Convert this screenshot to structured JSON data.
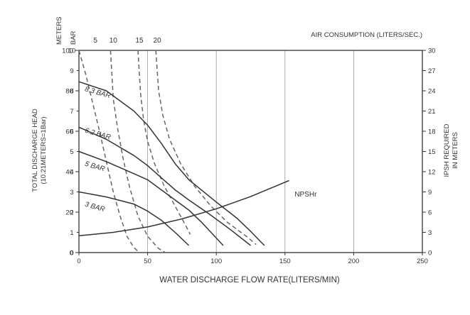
{
  "chart_data": {
    "type": "line",
    "xlabel": "WATER DISCHARGE FLOW RATE(LITERS/MIN)",
    "x_ticks": [
      0,
      50,
      100,
      150,
      200,
      250
    ],
    "xlim": [
      0,
      250
    ],
    "left_axis": {
      "label_line1": "TOTAL  DISCHARGE  HEAD",
      "label_line2": "(10.21METERS=1Bar)",
      "unit_top": "METERS",
      "unit_top2": "BAR",
      "ticks": [
        0,
        20,
        40,
        60,
        80,
        100
      ],
      "lim": [
        0,
        100
      ],
      "bar_ticks": [
        0,
        1,
        2,
        3,
        4,
        5,
        6,
        7,
        8,
        9,
        10
      ]
    },
    "right_axis": {
      "label_line1": "IPSH  REQUIRED",
      "label_line2": "IN  METERS",
      "ticks": [
        0,
        3,
        6,
        9,
        12,
        15,
        18,
        21,
        24,
        27,
        30
      ],
      "lim": [
        0,
        30
      ]
    },
    "air": {
      "title": "AIR CONSUMPTION (LITERS/SEC.)",
      "labels": [
        {
          "text": "5",
          "x": 12
        },
        {
          "text": "10",
          "x": 25
        },
        {
          "text": "15",
          "x": 44
        },
        {
          "text": "20",
          "x": 57
        }
      ]
    },
    "pressure_curves": [
      {
        "name": "8.3 BAR",
        "label_x": 4,
        "label_y": 80,
        "points": [
          [
            0,
            84.5
          ],
          [
            20,
            80
          ],
          [
            40,
            70
          ],
          [
            50,
            63
          ],
          [
            60,
            54
          ],
          [
            70,
            44
          ],
          [
            80,
            36
          ],
          [
            100,
            25
          ],
          [
            115,
            17
          ],
          [
            125,
            10.5
          ],
          [
            135,
            3.5
          ]
        ]
      },
      {
        "name": "6.2 BAR",
        "label_x": 4,
        "label_y": 59.5,
        "points": [
          [
            0,
            62
          ],
          [
            20,
            56
          ],
          [
            40,
            48
          ],
          [
            50,
            43
          ],
          [
            60,
            37
          ],
          [
            70,
            31
          ],
          [
            80,
            26
          ],
          [
            95,
            19
          ],
          [
            110,
            11.5
          ],
          [
            125,
            3.5
          ]
        ]
      },
      {
        "name": "5 BAR",
        "label_x": 4,
        "label_y": 43,
        "points": [
          [
            0,
            50
          ],
          [
            20,
            45
          ],
          [
            40,
            39
          ],
          [
            50,
            36
          ],
          [
            60,
            31
          ],
          [
            70,
            26
          ],
          [
            80,
            21
          ],
          [
            90,
            14.5
          ],
          [
            105,
            3.5
          ]
        ]
      },
      {
        "name": "3 BAR",
        "label_x": 4,
        "label_y": 23,
        "points": [
          [
            0,
            30
          ],
          [
            20,
            27.5
          ],
          [
            40,
            24
          ],
          [
            50,
            20.5
          ],
          [
            60,
            16
          ],
          [
            70,
            10
          ],
          [
            80,
            3.5
          ]
        ]
      }
    ],
    "air_curves": [
      {
        "name": "5",
        "points": [
          [
            0,
            100
          ],
          [
            5,
            88
          ],
          [
            10,
            74
          ],
          [
            15,
            60
          ],
          [
            20,
            45
          ],
          [
            25,
            30
          ],
          [
            30,
            18
          ],
          [
            35,
            8
          ],
          [
            40,
            2.5
          ],
          [
            44,
            0
          ]
        ]
      },
      {
        "name": "10",
        "points": [
          [
            23,
            100
          ],
          [
            24,
            88
          ],
          [
            25,
            76
          ],
          [
            28,
            62
          ],
          [
            32,
            47
          ],
          [
            37,
            32
          ],
          [
            43,
            18
          ],
          [
            50,
            8
          ],
          [
            58,
            2
          ],
          [
            63,
            0
          ]
        ]
      },
      {
        "name": "15",
        "points": [
          [
            43,
            100
          ],
          [
            44,
            88
          ],
          [
            45,
            78
          ],
          [
            47,
            66
          ],
          [
            50,
            55
          ],
          [
            55,
            44
          ],
          [
            62,
            33
          ],
          [
            70,
            23
          ],
          [
            78,
            13
          ],
          [
            81,
            9
          ]
        ]
      },
      {
        "name": "20",
        "points": [
          [
            56,
            100
          ],
          [
            57,
            90
          ],
          [
            58,
            80
          ],
          [
            61,
            68
          ],
          [
            66,
            56
          ],
          [
            74,
            44
          ],
          [
            84,
            33
          ],
          [
            96,
            23
          ],
          [
            108,
            15
          ],
          [
            122,
            8
          ],
          [
            129,
            4
          ]
        ]
      }
    ],
    "npsh_curve": {
      "name": "NPSHr",
      "label_x": 157,
      "label_y": 27.8,
      "points": [
        [
          0,
          2.5
        ],
        [
          25,
          3.0
        ],
        [
          50,
          3.8
        ],
        [
          75,
          5.0
        ],
        [
          100,
          6.5
        ],
        [
          125,
          8.3
        ],
        [
          153,
          10.7
        ]
      ]
    }
  }
}
